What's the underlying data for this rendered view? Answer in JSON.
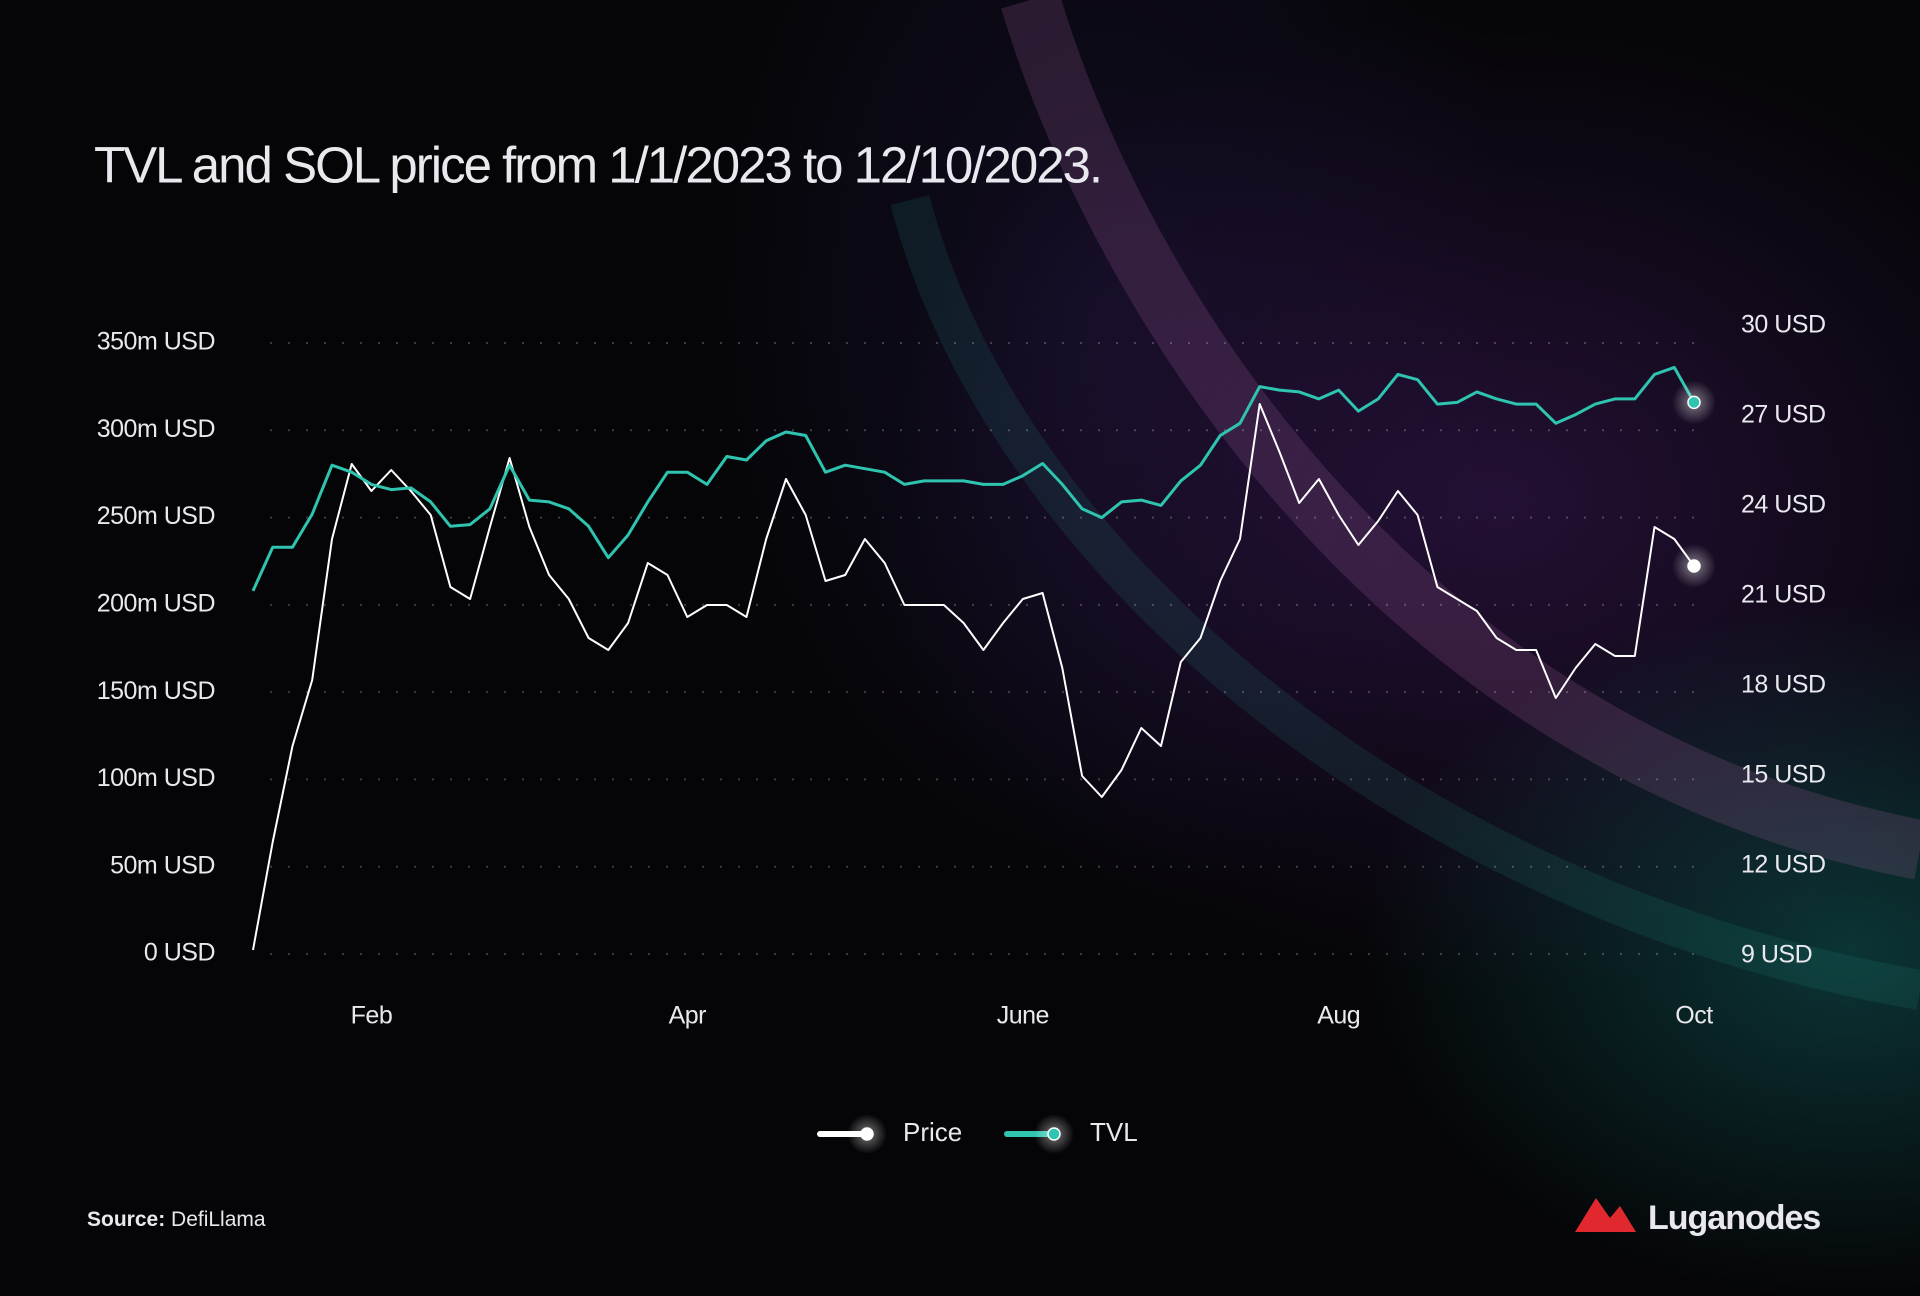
{
  "chart_data": {
    "type": "line",
    "title": "TVL and SOL price from 1/1/2023 to 12/10/2023.",
    "categories": [
      null,
      null,
      null,
      null,
      null,
      null,
      "Feb",
      null,
      null,
      null,
      null,
      null,
      null,
      null,
      null,
      null,
      null,
      null,
      null,
      null,
      null,
      null,
      "Apr",
      null,
      null,
      null,
      null,
      null,
      null,
      null,
      null,
      null,
      null,
      null,
      null,
      null,
      null,
      null,
      null,
      "June",
      null,
      null,
      null,
      null,
      null,
      null,
      null,
      null,
      null,
      null,
      null,
      null,
      null,
      null,
      null,
      "Aug",
      null,
      null,
      null,
      null,
      null,
      null,
      null,
      null,
      null,
      null,
      null,
      null,
      null,
      null,
      null,
      null,
      null,
      "Oct"
    ],
    "series": [
      {
        "name": "Price",
        "color": "#ffffff",
        "axis": "y2",
        "values": [
          9.2,
          12.8,
          16.0,
          18.2,
          22.9,
          25.4,
          24.5,
          25.2,
          24.5,
          23.7,
          21.3,
          20.9,
          23.3,
          25.6,
          23.3,
          21.7,
          20.9,
          19.6,
          19.2,
          20.1,
          22.1,
          21.7,
          20.3,
          20.7,
          20.7,
          20.3,
          22.9,
          24.9,
          23.7,
          21.5,
          21.7,
          22.9,
          22.1,
          20.7,
          20.7,
          20.7,
          20.1,
          19.2,
          20.1,
          20.9,
          21.1,
          18.6,
          15.0,
          14.3,
          15.2,
          16.6,
          16.0,
          18.8,
          19.6,
          21.5,
          22.9,
          27.4,
          25.8,
          24.1,
          24.9,
          23.7,
          22.7,
          23.5,
          24.5,
          23.7,
          21.3,
          20.9,
          20.5,
          19.6,
          19.2,
          19.2,
          17.6,
          18.6,
          19.4,
          19.0,
          19.0,
          23.3,
          22.9,
          22.0
        ]
      },
      {
        "name": "TVL",
        "color": "#2ec4b0",
        "values": [
          208,
          233,
          233,
          252,
          280,
          276,
          269,
          266,
          267,
          259,
          245,
          246,
          255,
          280,
          260,
          259,
          255,
          245,
          227,
          240,
          259,
          276,
          276,
          269,
          285,
          283,
          294,
          299,
          297,
          276,
          280,
          278,
          276,
          269,
          271,
          271,
          271,
          269,
          269,
          274,
          281,
          269,
          255,
          250,
          259,
          260,
          257,
          271,
          280,
          297,
          304,
          325,
          323,
          322,
          318,
          323,
          311,
          318,
          332,
          329,
          315,
          316,
          322,
          318,
          315,
          315,
          304,
          309,
          315,
          318,
          318,
          332,
          336,
          316
        ]
      }
    ],
    "ylim": [
      0,
      350
    ],
    "yticks": [
      {
        "value": 0,
        "label": "0 USD"
      },
      {
        "value": 50,
        "label": "50m USD"
      },
      {
        "value": 100,
        "label": "100m USD"
      },
      {
        "value": 150,
        "label": "150m USD"
      },
      {
        "value": 200,
        "label": "200m USD"
      },
      {
        "value": 250,
        "label": "250m USD"
      },
      {
        "value": 300,
        "label": "300m USD"
      },
      {
        "value": 350,
        "label": "350m USD"
      }
    ],
    "y2lim": [
      9,
      30
    ],
    "y2ticks": [
      {
        "value": 9,
        "label": "9 USD"
      },
      {
        "value": 12,
        "label": "12 USD"
      },
      {
        "value": 15,
        "label": "15 USD"
      },
      {
        "value": 18,
        "label": "18 USD"
      },
      {
        "value": 21,
        "label": "21 USD"
      },
      {
        "value": 24,
        "label": "24 USD"
      },
      {
        "value": 27,
        "label": "27 USD"
      },
      {
        "value": 30,
        "label": "30 USD"
      }
    ],
    "grid": true,
    "legend": "bottom",
    "source_label": "Source:",
    "source": "DefiLlama",
    "brand": "Luganodes"
  }
}
